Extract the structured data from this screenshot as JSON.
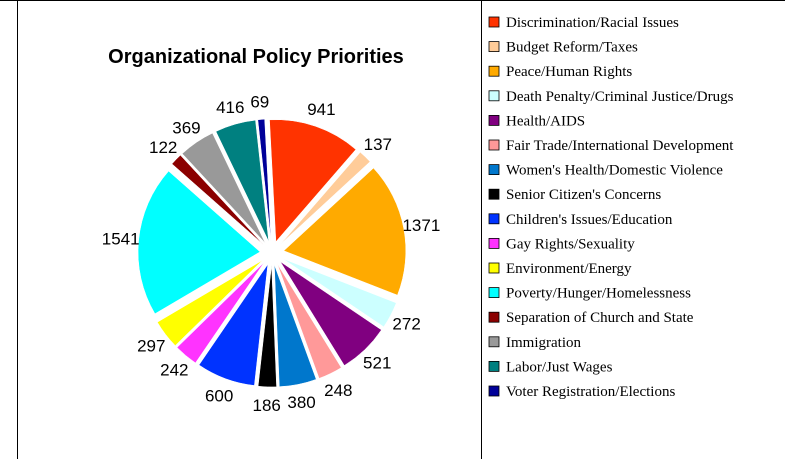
{
  "chart_data": {
    "type": "pie",
    "title": "Organizational Policy Priorities",
    "exploded": true,
    "legend_position": "right",
    "series": [
      {
        "label": "Discrimination/Racial Issues",
        "value": 941,
        "color": "#ff3300"
      },
      {
        "label": "Budget Reform/Taxes",
        "value": 137,
        "color": "#ffcc99"
      },
      {
        "label": "Peace/Human Rights",
        "value": 1371,
        "color": "#ffaa00"
      },
      {
        "label": "Death Penalty/Criminal Justice/Drugs",
        "value": 272,
        "color": "#ccffff"
      },
      {
        "label": "Health/AIDS",
        "value": 521,
        "color": "#800080"
      },
      {
        "label": "Fair Trade/International Development",
        "value": 248,
        "color": "#ff9999"
      },
      {
        "label": "Women's Health/Domestic Violence",
        "value": 380,
        "color": "#0077cc"
      },
      {
        "label": "Senior Citizen's Concerns",
        "value": 186,
        "color": "#000000"
      },
      {
        "label": "Children's Issues/Education",
        "value": 600,
        "color": "#0033ff"
      },
      {
        "label": "Gay Rights/Sexuality",
        "value": 242,
        "color": "#ff33ff"
      },
      {
        "label": "Environment/Energy",
        "value": 297,
        "color": "#ffff00"
      },
      {
        "label": "Poverty/Hunger/Homelessness",
        "value": 1541,
        "color": "#00ffff"
      },
      {
        "label": "Separation of Church and State",
        "value": 122,
        "color": "#8b0000"
      },
      {
        "label": "Immigration",
        "value": 369,
        "color": "#999999"
      },
      {
        "label": "Labor/Just Wages",
        "value": 416,
        "color": "#008080"
      },
      {
        "label": "Voter Registration/Elections",
        "value": 69,
        "color": "#000099"
      }
    ]
  }
}
